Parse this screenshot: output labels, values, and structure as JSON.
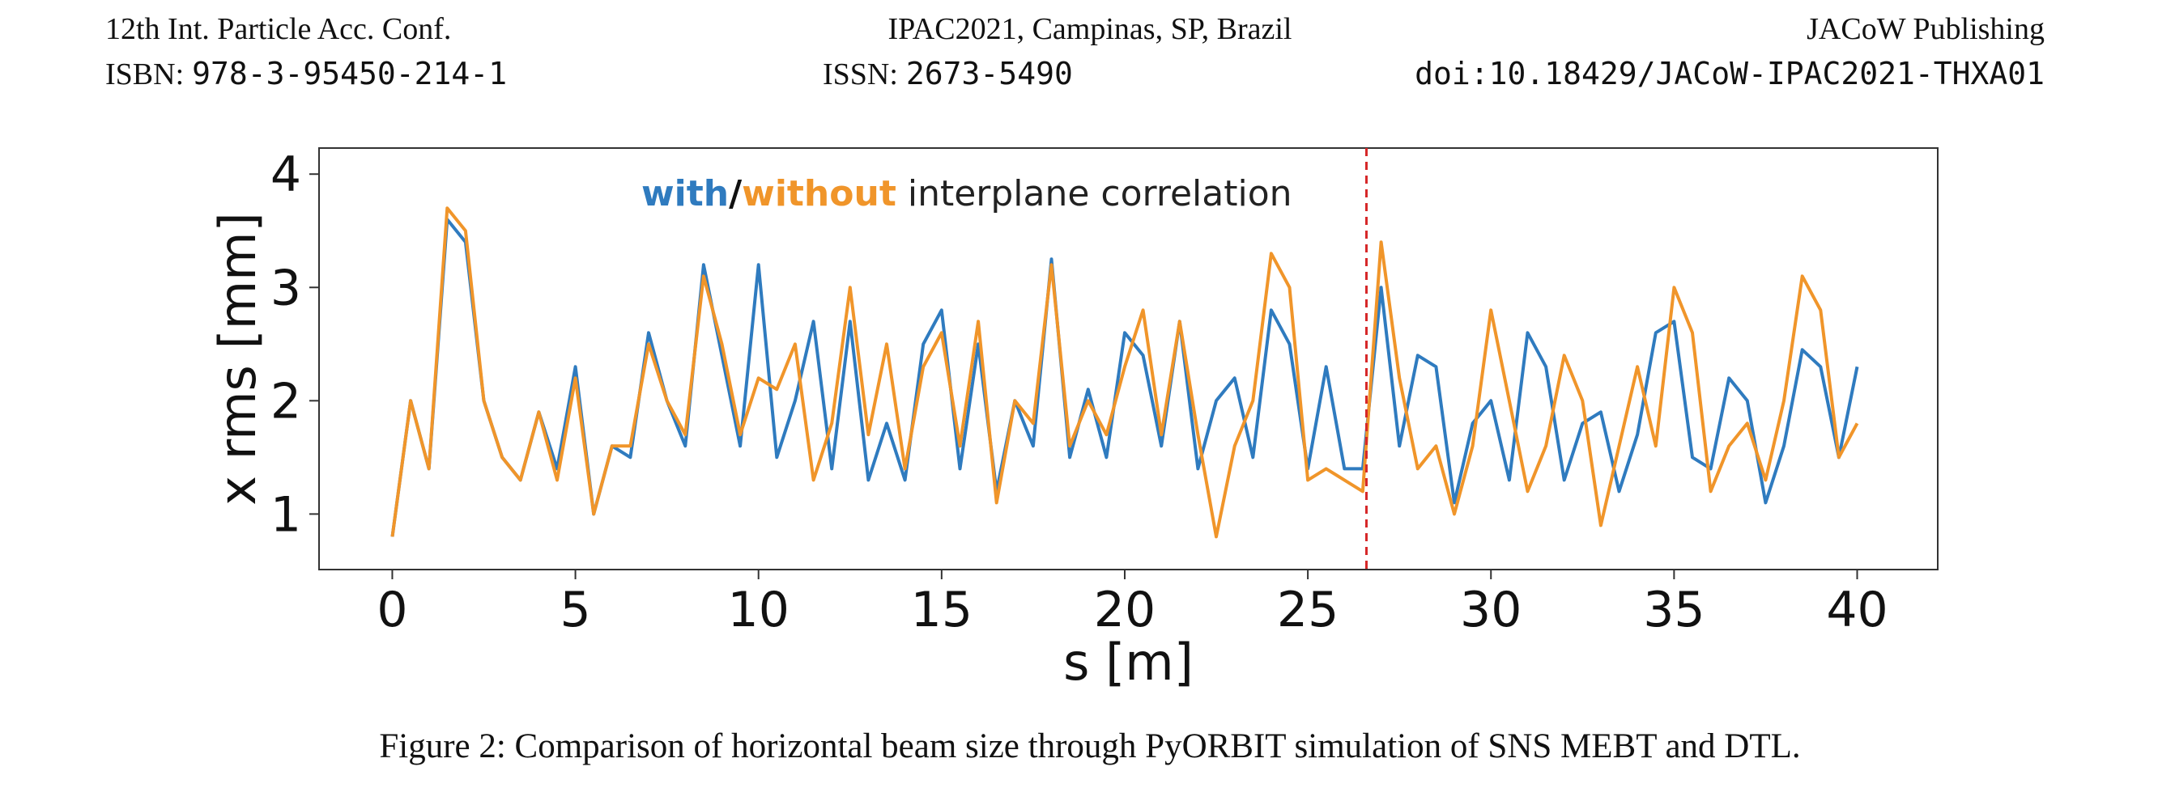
{
  "header": {
    "conf": "12th Int. Particle Acc. Conf.",
    "venue": "IPAC2021, Campinas, SP, Brazil",
    "publisher": "JACoW Publishing",
    "isbn_label": "ISBN:",
    "isbn": "978-3-95450-214-1",
    "issn_label": "ISSN:",
    "issn": "2673-5490",
    "doi": "doi:10.18429/JACoW-IPAC2021-THXA01"
  },
  "chart_data": {
    "type": "line",
    "xlabel": "s [m]",
    "ylabel": "x rms [mm]",
    "annotation": [
      {
        "text": "with",
        "color": "#2f7bbf"
      },
      {
        "text": "/",
        "color": "#111111"
      },
      {
        "text": "without",
        "color": "#f0952a"
      },
      {
        "text": " interplane correlation",
        "color": "#222222"
      }
    ],
    "xlim": [
      -2,
      42.2
    ],
    "ylim": [
      0.51,
      4.23
    ],
    "xticks": [
      0,
      5,
      10,
      15,
      20,
      25,
      30,
      35,
      40
    ],
    "yticks": [
      1,
      2,
      3,
      4
    ],
    "vline": {
      "x": 26.6,
      "color": "#d62728"
    },
    "x": [
      0,
      0.5,
      1,
      1.5,
      2,
      2.5,
      3,
      3.5,
      4,
      4.5,
      5,
      5.5,
      6,
      6.5,
      7,
      7.5,
      8,
      8.5,
      9,
      9.5,
      10,
      10.5,
      11,
      11.5,
      12,
      12.5,
      13,
      13.5,
      14,
      14.5,
      15,
      15.5,
      16,
      16.5,
      17,
      17.5,
      18,
      18.5,
      19,
      19.5,
      20,
      20.5,
      21,
      21.5,
      22,
      22.5,
      23,
      23.5,
      24,
      24.5,
      25,
      25.5,
      26,
      26.5,
      27,
      27.5,
      28,
      28.5,
      29,
      29.5,
      30,
      30.5,
      31,
      31.5,
      32,
      32.5,
      33,
      33.5,
      34,
      34.5,
      35,
      35.5,
      36,
      36.5,
      37,
      37.5,
      38,
      38.5,
      39,
      39.5,
      40
    ],
    "series": [
      {
        "color": "#2f7bbf",
        "values": [
          0.8,
          2.0,
          1.4,
          3.6,
          3.4,
          2.0,
          1.5,
          1.3,
          1.9,
          1.4,
          2.3,
          1.0,
          1.6,
          1.5,
          2.6,
          2.0,
          1.6,
          3.2,
          2.4,
          1.6,
          3.2,
          1.5,
          2.0,
          2.7,
          1.4,
          2.7,
          1.3,
          1.8,
          1.3,
          2.5,
          2.8,
          1.4,
          2.5,
          1.2,
          2.0,
          1.6,
          3.25,
          1.5,
          2.1,
          1.5,
          2.6,
          2.4,
          1.6,
          2.7,
          1.4,
          2.0,
          2.2,
          1.5,
          2.8,
          2.5,
          1.4,
          2.3,
          1.4,
          1.4,
          3.0,
          1.6,
          2.4,
          2.3,
          1.1,
          1.8,
          2.0,
          1.3,
          2.6,
          2.3,
          1.3,
          1.8,
          1.9,
          1.2,
          1.7,
          2.6,
          2.7,
          1.5,
          1.4,
          2.2,
          2.0,
          1.1,
          1.6,
          2.45,
          2.3,
          1.5,
          2.3
        ]
      },
      {
        "color": "#f0952a",
        "values": [
          0.8,
          2.0,
          1.4,
          3.7,
          3.5,
          2.0,
          1.5,
          1.3,
          1.9,
          1.3,
          2.2,
          1.0,
          1.6,
          1.6,
          2.5,
          2.0,
          1.7,
          3.1,
          2.5,
          1.7,
          2.2,
          2.1,
          2.5,
          1.3,
          1.8,
          3.0,
          1.7,
          2.5,
          1.4,
          2.3,
          2.6,
          1.6,
          2.7,
          1.1,
          2.0,
          1.8,
          3.2,
          1.6,
          2.0,
          1.7,
          2.3,
          2.8,
          1.7,
          2.7,
          1.7,
          0.8,
          1.6,
          2.0,
          3.3,
          3.0,
          1.3,
          1.4,
          1.3,
          1.2,
          3.4,
          2.2,
          1.4,
          1.6,
          1.0,
          1.6,
          2.8,
          2.0,
          1.2,
          1.6,
          2.4,
          2.0,
          0.9,
          1.6,
          2.3,
          1.6,
          3.0,
          2.6,
          1.2,
          1.6,
          1.8,
          1.3,
          2.0,
          3.1,
          2.8,
          1.5,
          1.8
        ]
      }
    ]
  },
  "caption": "Figure 2: Comparison of horizontal beam size through PyORBIT simulation of SNS MEBT and DTL."
}
